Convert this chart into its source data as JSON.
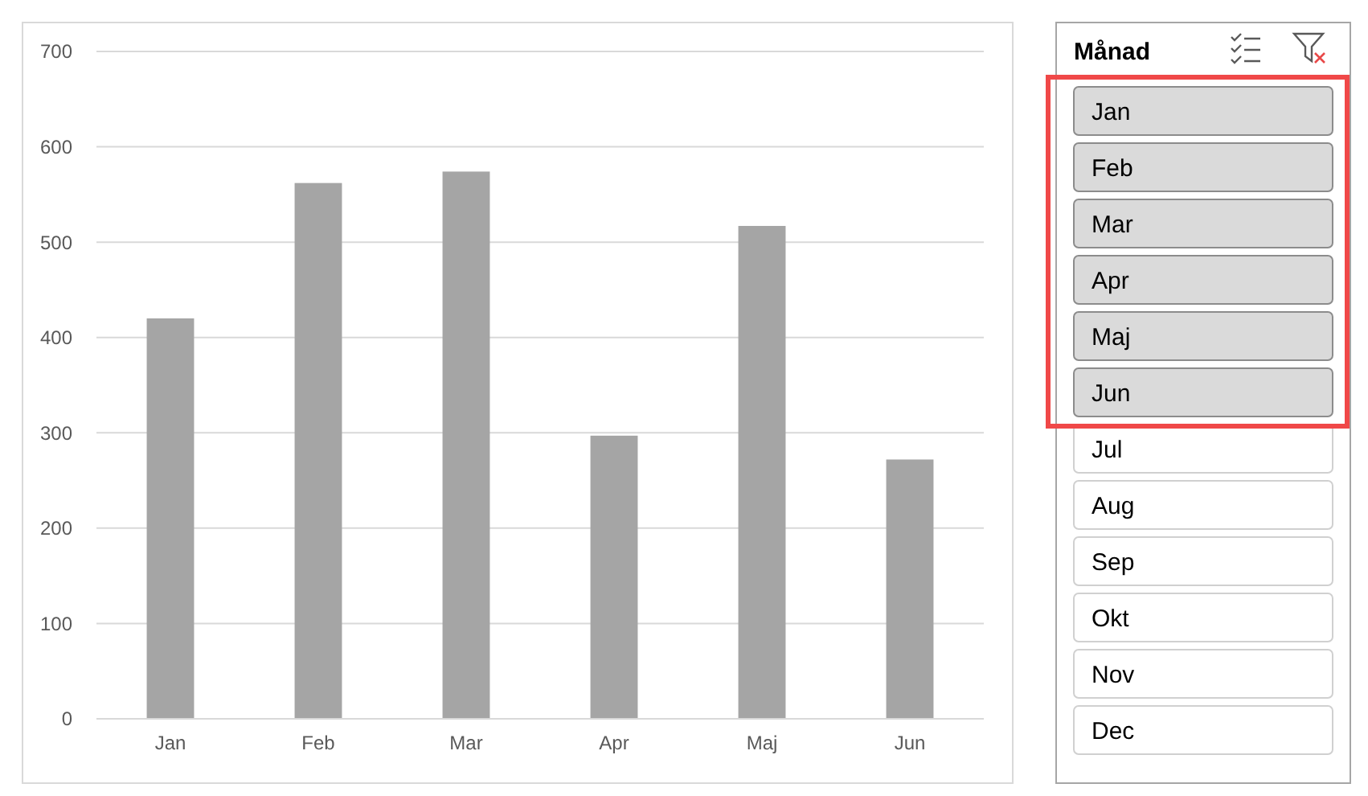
{
  "chart_data": [
    {
      "type": "bar",
      "categories": [
        "Jan",
        "Feb",
        "Mar",
        "Apr",
        "Maj",
        "Jun"
      ],
      "values": [
        420,
        562,
        574,
        297,
        517,
        272
      ],
      "color": "#a5a5a5",
      "ylim": [
        0,
        700
      ],
      "yticks": [
        0,
        100,
        200,
        300,
        400,
        500,
        600,
        700
      ],
      "grid": "y"
    },
    {
      "type": "other",
      "title": "Månad",
      "categories": [
        "Jan",
        "Feb",
        "Mar",
        "Apr",
        "Maj",
        "Jun",
        "Jul",
        "Aug",
        "Sep",
        "Okt",
        "Nov",
        "Dec"
      ],
      "colors": [
        "#dadada",
        "#dadada",
        "#dadada",
        "#dadada",
        "#dadada",
        "#dadada",
        "#ffffff",
        "#ffffff",
        "#ffffff",
        "#ffffff",
        "#ffffff",
        "#ffffff"
      ]
    }
  ]
}
